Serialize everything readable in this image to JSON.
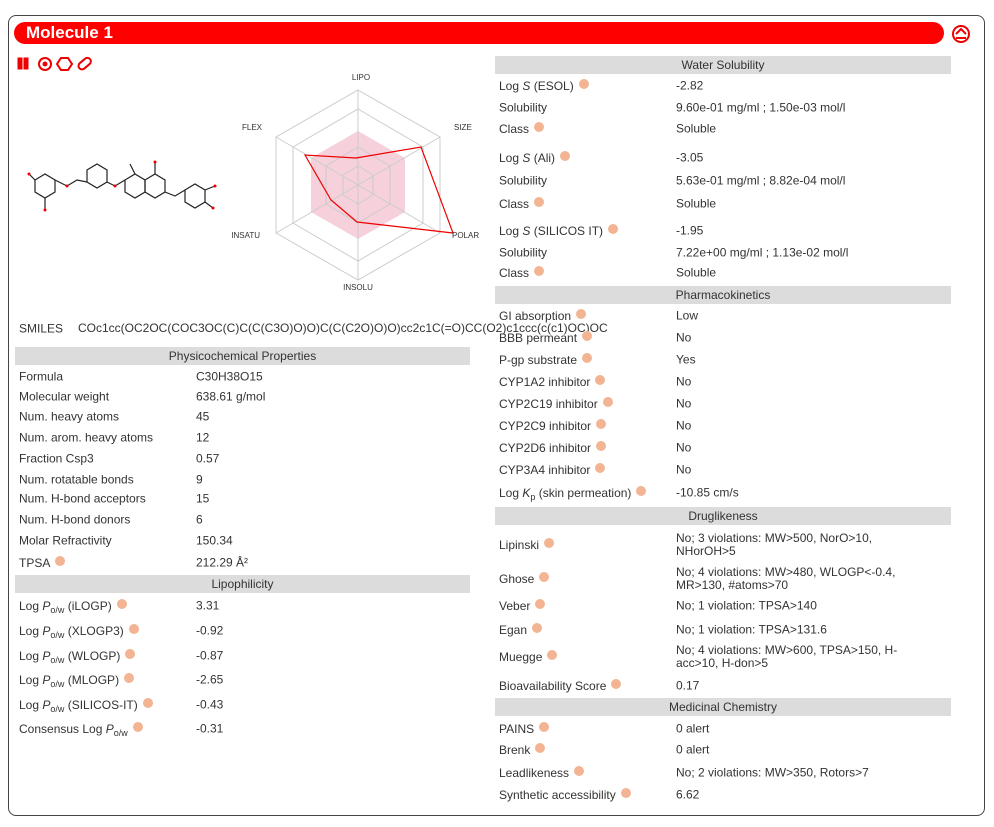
{
  "header": {
    "title": "Molecule 1"
  },
  "radar": {
    "axes": [
      "LIPO",
      "SIZE",
      "POLAR",
      "INSOLU",
      "INSATU",
      "FLEX"
    ]
  },
  "smiles": {
    "label": "SMILES",
    "value": "COc1cc(OC2OC(COC3OC(C)C(C(C3O)O)O)C(C(C2O)O)O)cc2c1C(=O)CC(O2)c1ccc(c(c1)OC)OC"
  },
  "sections": [
    {
      "title": "Physicochemical Properties",
      "rows": [
        {
          "label": "Formula",
          "value": "C30H38O15"
        },
        {
          "label": "Molecular weight",
          "value": "638.61 g/mol"
        },
        {
          "label": "Num. heavy atoms",
          "value": "45"
        },
        {
          "label": "Num. arom. heavy atoms",
          "value": "12"
        },
        {
          "label": "Fraction Csp3",
          "value": "0.57"
        },
        {
          "label": "Num. rotatable bonds",
          "value": "9"
        },
        {
          "label": "Num. H-bond acceptors",
          "value": "15"
        },
        {
          "label": "Num. H-bond donors",
          "value": "6"
        },
        {
          "label": "Molar Refractivity",
          "value": "150.34"
        },
        {
          "label": "TPSA",
          "value": "212.29 Å²",
          "help": true
        }
      ]
    },
    {
      "title": "Lipophilicity",
      "rows": [
        {
          "label": [
            {
              "t": "Log "
            },
            {
              "t": "P",
              "f": "i"
            },
            {
              "t": "o/w",
              "f": "sub"
            },
            {
              "t": " (iLOGP)"
            }
          ],
          "value": "3.31",
          "help": true
        },
        {
          "label": [
            {
              "t": "Log "
            },
            {
              "t": "P",
              "f": "i"
            },
            {
              "t": "o/w",
              "f": "sub"
            },
            {
              "t": " (XLOGP3)"
            }
          ],
          "value": "-0.92",
          "help": true
        },
        {
          "label": [
            {
              "t": "Log "
            },
            {
              "t": "P",
              "f": "i"
            },
            {
              "t": "o/w",
              "f": "sub"
            },
            {
              "t": " (WLOGP)"
            }
          ],
          "value": "-0.87",
          "help": true
        },
        {
          "label": [
            {
              "t": "Log "
            },
            {
              "t": "P",
              "f": "i"
            },
            {
              "t": "o/w",
              "f": "sub"
            },
            {
              "t": " (MLOGP)"
            }
          ],
          "value": "-2.65",
          "help": true
        },
        {
          "label": [
            {
              "t": "Log "
            },
            {
              "t": "P",
              "f": "i"
            },
            {
              "t": "o/w",
              "f": "sub"
            },
            {
              "t": " (SILICOS-IT)"
            }
          ],
          "value": "-0.43",
          "help": true
        },
        {
          "label": [
            {
              "t": "Consensus Log "
            },
            {
              "t": "P",
              "f": "i"
            },
            {
              "t": "o/w",
              "f": "sub"
            }
          ],
          "value": "-0.31",
          "help": true
        }
      ]
    },
    {
      "title": "Water Solubility",
      "rows": [
        {
          "label": [
            {
              "t": "Log "
            },
            {
              "t": "S",
              "f": "i"
            },
            {
              "t": " (ESOL)"
            }
          ],
          "value": "-2.82",
          "help": true
        },
        {
          "label": "Solubility",
          "value": "9.60e-01 mg/ml ; 1.50e-03 mol/l"
        },
        {
          "label": "Class",
          "value": "Soluble",
          "help": true
        },
        {
          "label": [
            {
              "t": "Log "
            },
            {
              "t": "S",
              "f": "i"
            },
            {
              "t": " (Ali)"
            }
          ],
          "value": "-3.05",
          "help": true
        },
        {
          "label": "Solubility",
          "value": "5.63e-01 mg/ml ; 8.82e-04 mol/l"
        },
        {
          "label": "Class",
          "value": "Soluble",
          "help": true
        },
        {
          "label": [
            {
              "t": "Log "
            },
            {
              "t": "S",
              "f": "i"
            },
            {
              "t": " (SILICOS IT)"
            }
          ],
          "value": "-1.95",
          "help": true
        },
        {
          "label": "Solubility",
          "value": "7.22e+00 mg/ml ; 1.13e-02 mol/l"
        },
        {
          "label": "Class",
          "value": "Soluble",
          "help": true
        }
      ]
    },
    {
      "title": "Pharmacokinetics",
      "rows": [
        {
          "label": "GI absorption",
          "value": "Low",
          "help": true
        },
        {
          "label": "BBB permeant",
          "value": "No",
          "help": true
        },
        {
          "label": "P-gp substrate",
          "value": "Yes",
          "help": true
        },
        {
          "label": "CYP1A2 inhibitor",
          "value": "No",
          "help": true
        },
        {
          "label": "CYP2C19 inhibitor",
          "value": "No",
          "help": true
        },
        {
          "label": "CYP2C9 inhibitor",
          "value": "No",
          "help": true
        },
        {
          "label": "CYP2D6 inhibitor",
          "value": "No",
          "help": true
        },
        {
          "label": "CYP3A4 inhibitor",
          "value": "No",
          "help": true
        },
        {
          "label": [
            {
              "t": "Log "
            },
            {
              "t": "K",
              "f": "i"
            },
            {
              "t": "p",
              "f": "sub"
            },
            {
              "t": " (skin permeation)"
            }
          ],
          "value": "-10.85 cm/s",
          "help": true
        }
      ]
    },
    {
      "title": "Druglikeness",
      "rows": [
        {
          "label": "Lipinski",
          "value": "No; 3 violations: MW>500, NorO>10, NHorOH>5",
          "help": true
        },
        {
          "label": "Ghose",
          "value": "No; 4 violations: MW>480, WLOGP<-0.4, MR>130, #atoms>70",
          "help": true
        },
        {
          "label": "Veber",
          "value": "No; 1 violation: TPSA>140",
          "help": true
        },
        {
          "label": "Egan",
          "value": "No; 1 violation: TPSA>131.6",
          "help": true
        },
        {
          "label": "Muegge",
          "value": "No; 4 violations: MW>600, TPSA>150, H-acc>10, H-don>5",
          "help": true
        },
        {
          "label": "Bioavailability Score",
          "value": "0.17",
          "help": true
        }
      ]
    },
    {
      "title": "Medicinal Chemistry",
      "rows": [
        {
          "label": "PAINS",
          "value": "0 alert",
          "help": true
        },
        {
          "label": "Brenk",
          "value": "0 alert",
          "help": true
        },
        {
          "label": "Leadlikeness",
          "value": "No; 2 violations: MW>350, Rotors>7",
          "help": true
        },
        {
          "label": "Synthetic accessibility",
          "value": "6.62",
          "help": true
        }
      ]
    }
  ]
}
